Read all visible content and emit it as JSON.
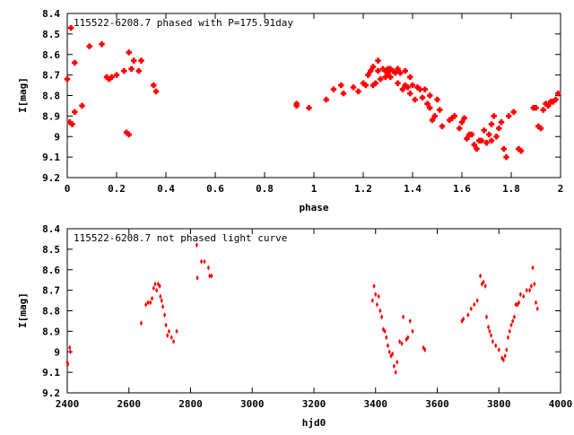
{
  "colors": {
    "points": "#ff0000",
    "axes": "#000000",
    "background": "#ffffff"
  },
  "chart_data": [
    {
      "type": "scatter",
      "title": "115522-6208.7 phased with P=175.91day",
      "xlabel": "phase",
      "ylabel": "I[mag]",
      "xlim": [
        0,
        2
      ],
      "ylim": [
        9.2,
        8.4
      ],
      "y_inverted": true,
      "grid": false,
      "x_ticks": [
        "0",
        "0.2",
        "0.4",
        "0.6",
        "0.8",
        "1",
        "1.2",
        "1.4",
        "1.6",
        "1.8",
        "2"
      ],
      "x_tick_values": [
        0,
        0.2,
        0.4,
        0.6,
        0.8,
        1,
        1.2,
        1.4,
        1.6,
        1.8,
        2
      ],
      "y_ticks": [
        "8.4",
        "8.5",
        "8.6",
        "8.7",
        "8.8",
        "8.9",
        "9",
        "9.1",
        "9.2"
      ],
      "y_tick_values": [
        8.4,
        8.5,
        8.6,
        8.7,
        8.8,
        8.9,
        9.0,
        9.1,
        9.2
      ],
      "points": [
        [
          0.0,
          8.72
        ],
        [
          0.01,
          8.93
        ],
        [
          0.015,
          8.47
        ],
        [
          0.02,
          8.94
        ],
        [
          0.03,
          8.88
        ],
        [
          0.03,
          8.64
        ],
        [
          0.06,
          8.85
        ],
        [
          0.09,
          8.56
        ],
        [
          0.14,
          8.55
        ],
        [
          0.16,
          8.71
        ],
        [
          0.17,
          8.72
        ],
        [
          0.18,
          8.71
        ],
        [
          0.2,
          8.7
        ],
        [
          0.23,
          8.68
        ],
        [
          0.24,
          8.98
        ],
        [
          0.25,
          8.99
        ],
        [
          0.25,
          8.59
        ],
        [
          0.26,
          8.67
        ],
        [
          0.27,
          8.63
        ],
        [
          0.29,
          8.68
        ],
        [
          0.3,
          8.63
        ],
        [
          0.35,
          8.75
        ],
        [
          0.36,
          8.78
        ],
        [
          0.93,
          8.84
        ],
        [
          0.93,
          8.85
        ],
        [
          0.98,
          8.86
        ],
        [
          1.05,
          8.82
        ],
        [
          1.08,
          8.77
        ],
        [
          1.11,
          8.75
        ],
        [
          1.12,
          8.79
        ],
        [
          1.16,
          8.76
        ],
        [
          1.18,
          8.78
        ],
        [
          1.2,
          8.74
        ],
        [
          1.21,
          8.75
        ],
        [
          1.22,
          8.7
        ],
        [
          1.23,
          8.68
        ],
        [
          1.24,
          8.75
        ],
        [
          1.24,
          8.66
        ],
        [
          1.25,
          8.74
        ],
        [
          1.26,
          8.68
        ],
        [
          1.26,
          8.63
        ],
        [
          1.27,
          8.72
        ],
        [
          1.28,
          8.67
        ],
        [
          1.29,
          8.71
        ],
        [
          1.29,
          8.68
        ],
        [
          1.3,
          8.67
        ],
        [
          1.3,
          8.69
        ],
        [
          1.31,
          8.67
        ],
        [
          1.31,
          8.71
        ],
        [
          1.32,
          8.68
        ],
        [
          1.33,
          8.69
        ],
        [
          1.34,
          8.74
        ],
        [
          1.34,
          8.67
        ],
        [
          1.35,
          8.69
        ],
        [
          1.36,
          8.77
        ],
        [
          1.37,
          8.68
        ],
        [
          1.37,
          8.75
        ],
        [
          1.38,
          8.76
        ],
        [
          1.39,
          8.71
        ],
        [
          1.39,
          8.79
        ],
        [
          1.4,
          8.75
        ],
        [
          1.41,
          8.82
        ],
        [
          1.42,
          8.76
        ],
        [
          1.43,
          8.77
        ],
        [
          1.44,
          8.81
        ],
        [
          1.45,
          8.77
        ],
        [
          1.46,
          8.84
        ],
        [
          1.47,
          8.8
        ],
        [
          1.47,
          8.86
        ],
        [
          1.48,
          8.92
        ],
        [
          1.49,
          8.9
        ],
        [
          1.5,
          8.82
        ],
        [
          1.51,
          8.87
        ],
        [
          1.52,
          8.95
        ],
        [
          1.55,
          8.92
        ],
        [
          1.56,
          8.91
        ],
        [
          1.57,
          8.9
        ],
        [
          1.59,
          8.96
        ],
        [
          1.6,
          8.93
        ],
        [
          1.61,
          8.91
        ],
        [
          1.62,
          9.01
        ],
        [
          1.63,
          8.99
        ],
        [
          1.64,
          8.99
        ],
        [
          1.65,
          9.04
        ],
        [
          1.66,
          9.06
        ],
        [
          1.67,
          9.02
        ],
        [
          1.68,
          9.02
        ],
        [
          1.69,
          8.97
        ],
        [
          1.7,
          9.03
        ],
        [
          1.71,
          8.99
        ],
        [
          1.72,
          8.94
        ],
        [
          1.72,
          9.02
        ],
        [
          1.73,
          8.9
        ],
        [
          1.74,
          9.0
        ],
        [
          1.75,
          8.96
        ],
        [
          1.76,
          8.93
        ],
        [
          1.77,
          9.06
        ],
        [
          1.78,
          9.1
        ],
        [
          1.79,
          8.9
        ],
        [
          1.81,
          8.88
        ],
        [
          1.83,
          9.06
        ],
        [
          1.84,
          9.07
        ],
        [
          1.89,
          8.86
        ],
        [
          1.9,
          8.86
        ],
        [
          1.91,
          8.95
        ],
        [
          1.92,
          8.96
        ],
        [
          1.93,
          8.87
        ],
        [
          1.94,
          8.84
        ],
        [
          1.95,
          8.85
        ],
        [
          1.96,
          8.83
        ],
        [
          1.97,
          8.83
        ],
        [
          1.98,
          8.82
        ],
        [
          1.99,
          8.79
        ]
      ]
    },
    {
      "type": "scatter",
      "title": "115522-6208.7 not phased light curve",
      "xlabel": "hjd0",
      "ylabel": "I[mag]",
      "xlim": [
        2400,
        4000
      ],
      "ylim": [
        9.2,
        8.4
      ],
      "y_inverted": true,
      "grid": false,
      "x_ticks": [
        "2400",
        "2600",
        "2800",
        "3000",
        "3200",
        "3400",
        "3600",
        "3800",
        "4000"
      ],
      "x_tick_values": [
        2400,
        2600,
        2800,
        3000,
        3200,
        3400,
        3600,
        3800,
        4000
      ],
      "y_ticks": [
        "8.4",
        "8.5",
        "8.6",
        "8.7",
        "8.8",
        "8.9",
        "9",
        "9.1",
        "9.2"
      ],
      "y_tick_values": [
        8.4,
        8.5,
        8.6,
        8.7,
        8.8,
        8.9,
        9.0,
        9.1,
        9.2
      ],
      "points": [
        [
          2400,
          9.05
        ],
        [
          2402,
          9.06
        ],
        [
          2408,
          8.98
        ],
        [
          2410,
          9.0
        ],
        [
          2640,
          8.86
        ],
        [
          2655,
          8.77
        ],
        [
          2662,
          8.76
        ],
        [
          2670,
          8.76
        ],
        [
          2675,
          8.74
        ],
        [
          2680,
          8.69
        ],
        [
          2685,
          8.67
        ],
        [
          2690,
          8.7
        ],
        [
          2695,
          8.67
        ],
        [
          2700,
          8.68
        ],
        [
          2702,
          8.73
        ],
        [
          2706,
          8.75
        ],
        [
          2710,
          8.78
        ],
        [
          2716,
          8.82
        ],
        [
          2720,
          8.87
        ],
        [
          2725,
          8.92
        ],
        [
          2730,
          8.9
        ],
        [
          2738,
          8.93
        ],
        [
          2745,
          8.95
        ],
        [
          2755,
          8.9
        ],
        [
          2820,
          8.48
        ],
        [
          2822,
          8.64
        ],
        [
          2835,
          8.56
        ],
        [
          2845,
          8.56
        ],
        [
          2858,
          8.59
        ],
        [
          2862,
          8.63
        ],
        [
          2868,
          8.63
        ],
        [
          3390,
          8.75
        ],
        [
          3395,
          8.68
        ],
        [
          3400,
          8.72
        ],
        [
          3405,
          8.77
        ],
        [
          3410,
          8.73
        ],
        [
          3415,
          8.8
        ],
        [
          3420,
          8.83
        ],
        [
          3425,
          8.89
        ],
        [
          3430,
          8.9
        ],
        [
          3435,
          8.93
        ],
        [
          3440,
          8.97
        ],
        [
          3445,
          9.0
        ],
        [
          3450,
          9.02
        ],
        [
          3455,
          9.01
        ],
        [
          3460,
          9.07
        ],
        [
          3465,
          9.1
        ],
        [
          3470,
          9.05
        ],
        [
          3478,
          8.95
        ],
        [
          3485,
          8.96
        ],
        [
          3490,
          8.83
        ],
        [
          3500,
          8.94
        ],
        [
          3505,
          8.93
        ],
        [
          3512,
          8.85
        ],
        [
          3520,
          8.9
        ],
        [
          3555,
          8.98
        ],
        [
          3560,
          8.99
        ],
        [
          3680,
          8.85
        ],
        [
          3685,
          8.84
        ],
        [
          3700,
          8.82
        ],
        [
          3710,
          8.79
        ],
        [
          3720,
          8.77
        ],
        [
          3730,
          8.75
        ],
        [
          3740,
          8.63
        ],
        [
          3745,
          8.67
        ],
        [
          3750,
          8.66
        ],
        [
          3756,
          8.68
        ],
        [
          3760,
          8.83
        ],
        [
          3766,
          8.88
        ],
        [
          3770,
          8.9
        ],
        [
          3775,
          8.92
        ],
        [
          3780,
          8.95
        ],
        [
          3790,
          8.97
        ],
        [
          3800,
          8.99
        ],
        [
          3810,
          9.03
        ],
        [
          3815,
          9.04
        ],
        [
          3820,
          9.02
        ],
        [
          3825,
          8.99
        ],
        [
          3830,
          8.93
        ],
        [
          3835,
          8.9
        ],
        [
          3840,
          8.87
        ],
        [
          3845,
          8.85
        ],
        [
          3850,
          8.83
        ],
        [
          3855,
          8.77
        ],
        [
          3860,
          8.77
        ],
        [
          3865,
          8.76
        ],
        [
          3870,
          8.72
        ],
        [
          3880,
          8.73
        ],
        [
          3890,
          8.7
        ],
        [
          3900,
          8.7
        ],
        [
          3905,
          8.68
        ],
        [
          3910,
          8.59
        ],
        [
          3915,
          8.67
        ],
        [
          3920,
          8.76
        ],
        [
          3925,
          8.79
        ]
      ]
    }
  ]
}
